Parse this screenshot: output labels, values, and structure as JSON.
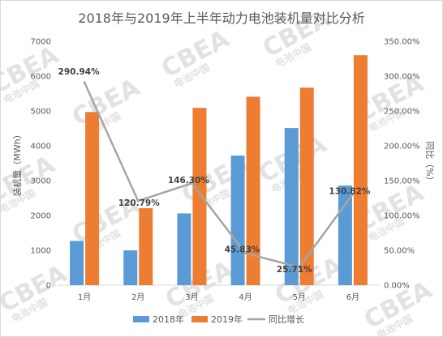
{
  "chart_data": {
    "type": "bar",
    "title": "2018年与2019年上半年动力电池装机量对比分析",
    "categories": [
      "1月",
      "2月",
      "3月",
      "4月",
      "5月",
      "6月"
    ],
    "series": [
      {
        "name": "2018年",
        "type": "bar",
        "axis": "left",
        "color": "#5b9bd5",
        "values": [
          1270,
          1000,
          2060,
          3720,
          4510,
          2860
        ]
      },
      {
        "name": "2019年",
        "type": "bar",
        "axis": "left",
        "color": "#ed7d31",
        "values": [
          4970,
          2210,
          5090,
          5410,
          5670,
          6600
        ]
      },
      {
        "name": "同比增长",
        "type": "line",
        "axis": "right",
        "color": "#a5a5a5",
        "values": [
          290.94,
          120.79,
          146.3,
          45.83,
          25.71,
          130.82
        ],
        "labels": [
          "290.94%",
          "120.79%",
          "146.30%",
          "45.83%",
          "25.71%",
          "130.82%"
        ]
      }
    ],
    "ylabel": "装机量（MWh）",
    "ylabel_right": "同比（%）",
    "ylim": [
      0,
      7000
    ],
    "ylim_right": [
      0,
      350
    ],
    "yticks": [
      "0",
      "1000",
      "2000",
      "3000",
      "4000",
      "5000",
      "6000",
      "7000"
    ],
    "yticks_right": [
      "0.00%",
      "50.00%",
      "100.00%",
      "150.00%",
      "200.00%",
      "250.00%",
      "300.00%",
      "350.00%"
    ],
    "grid": false,
    "legend_position": "bottom"
  },
  "watermark": "CBEA 电池中国"
}
